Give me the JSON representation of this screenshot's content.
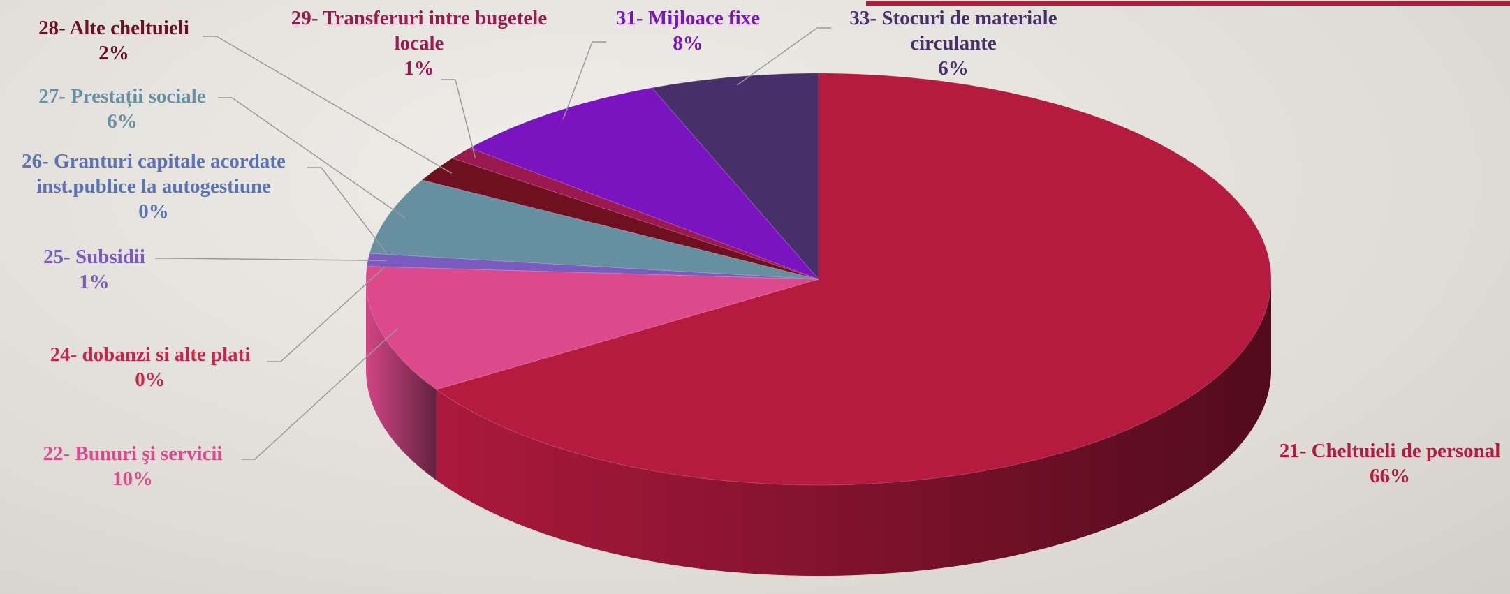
{
  "chart_data": {
    "type": "pie3d",
    "categories": [
      "21-  Cheltuieli de personal",
      "22-  Bunuri şi servicii",
      "24- dobanzi si alte plati",
      "25-  Subsidii",
      "26- Granturi capitale acordate inst.publice la autogestiune",
      "27-  Prestații sociale",
      "28-  Alte cheltuieli",
      "29- Transferuri intre bugetele locale",
      "31-  Mijloace fixe",
      "33-  Stocuri de materiale circulante"
    ],
    "values": [
      66,
      10,
      0,
      1,
      0,
      6,
      2,
      1,
      8,
      6
    ],
    "value_labels": [
      "66%",
      "10%",
      "0%",
      "1%",
      "0%",
      "6%",
      "2%",
      "1%",
      "8%",
      "6%"
    ],
    "colors": [
      "#b51a3f",
      "#dc4a8c",
      "#c8254d",
      "#7a5cc0",
      "#5a72b8",
      "#6690a0",
      "#6e1020",
      "#9a1a50",
      "#7a14c0",
      "#47306a"
    ]
  }
}
